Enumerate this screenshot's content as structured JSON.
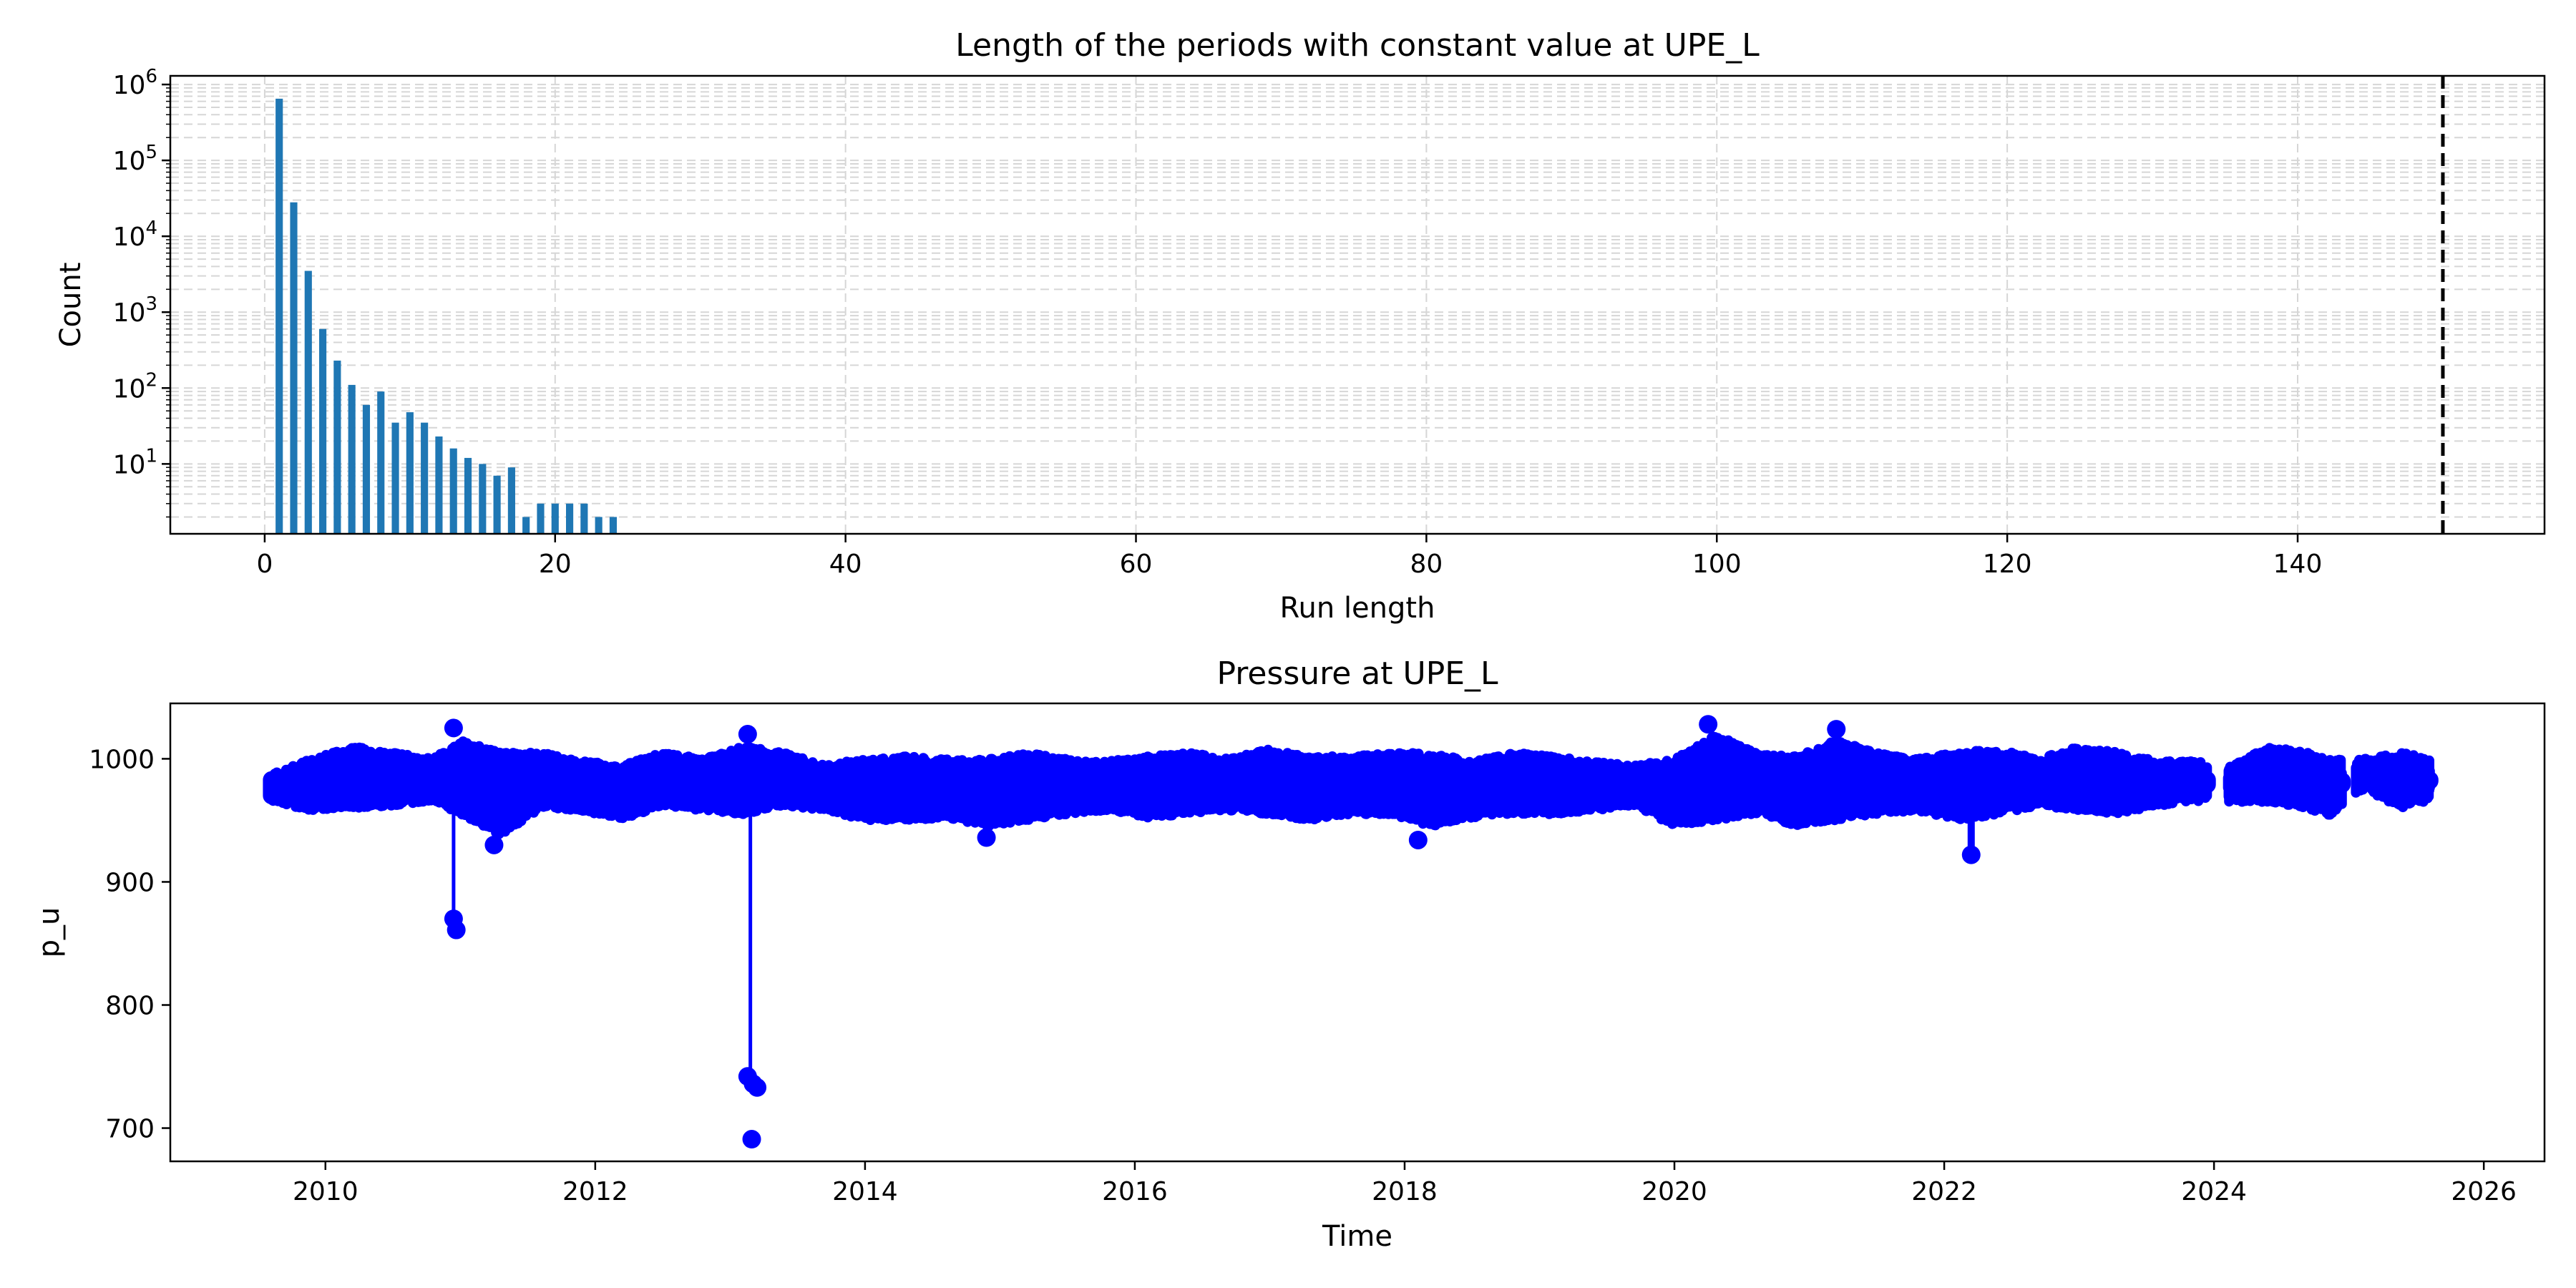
{
  "chart_data": [
    {
      "type": "bar",
      "title": "Length of the periods with constant value at UPE_L",
      "xlabel": "Run length",
      "ylabel": "Count",
      "yscale": "log",
      "xlim": [
        -6.5,
        157
      ],
      "ylim": [
        1.2,
        1300000
      ],
      "grid": "dashed, major and minor",
      "xticks": [
        "0",
        "20",
        "40",
        "60",
        "80",
        "100",
        "120",
        "140"
      ],
      "yticks": [
        {
          "base": "10",
          "exp": "1"
        },
        {
          "base": "10",
          "exp": "2"
        },
        {
          "base": "10",
          "exp": "3"
        },
        {
          "base": "10",
          "exp": "4"
        },
        {
          "base": "10",
          "exp": "5"
        },
        {
          "base": "10",
          "exp": "6"
        }
      ],
      "bar_color": "#1f77b4",
      "x": [
        1,
        2,
        3,
        4,
        5,
        6,
        7,
        8,
        9,
        10,
        11,
        12,
        13,
        14,
        15,
        16,
        17,
        18,
        19,
        20,
        21,
        22,
        23,
        24
      ],
      "values": [
        650000,
        28000,
        3500,
        600,
        230,
        110,
        60,
        90,
        35,
        48,
        35,
        23,
        16,
        12,
        10,
        7,
        9,
        2,
        3,
        3,
        3,
        3,
        2,
        2
      ],
      "threshold_line": {
        "x": 150,
        "style": "dashed",
        "color": "#000000"
      }
    },
    {
      "type": "line",
      "title": "Pressure at UPE_L",
      "xlabel": "Time",
      "ylabel": "p_u",
      "xlim": [
        2008.85,
        2026.45
      ],
      "ylim": [
        673,
        1045
      ],
      "xticks": [
        "2010",
        "2012",
        "2014",
        "2016",
        "2018",
        "2020",
        "2022",
        "2024",
        "2026"
      ],
      "yticks": [
        "700",
        "800",
        "900",
        "1000"
      ],
      "series_color": "#0000ff",
      "marker": "circle",
      "band": [
        [
          2009.6,
          965,
          988
        ],
        [
          2009.9,
          958,
          1000
        ],
        [
          2010.2,
          960,
          1010
        ],
        [
          2010.5,
          962,
          1005
        ],
        [
          2010.8,
          965,
          1000
        ],
        [
          2011.0,
          955,
          1015
        ],
        [
          2011.3,
          938,
          1005
        ],
        [
          2011.6,
          960,
          1005
        ],
        [
          2011.9,
          958,
          998
        ],
        [
          2012.2,
          950,
          995
        ],
        [
          2012.5,
          962,
          1005
        ],
        [
          2012.8,
          958,
          1000
        ],
        [
          2013.1,
          955,
          1010
        ],
        [
          2013.4,
          962,
          1005
        ],
        [
          2013.7,
          958,
          995
        ],
        [
          2014.0,
          950,
          1000
        ],
        [
          2014.3,
          950,
          1002
        ],
        [
          2014.6,
          952,
          1000
        ],
        [
          2014.9,
          945,
          1000
        ],
        [
          2015.2,
          950,
          1005
        ],
        [
          2015.5,
          955,
          1000
        ],
        [
          2015.8,
          958,
          998
        ],
        [
          2016.1,
          952,
          1002
        ],
        [
          2016.4,
          955,
          1005
        ],
        [
          2016.7,
          958,
          1000
        ],
        [
          2017.0,
          955,
          1008
        ],
        [
          2017.3,
          950,
          1002
        ],
        [
          2017.6,
          955,
          1002
        ],
        [
          2017.9,
          955,
          1005
        ],
        [
          2018.2,
          945,
          1005
        ],
        [
          2018.5,
          952,
          998
        ],
        [
          2018.8,
          955,
          1005
        ],
        [
          2019.1,
          955,
          1002
        ],
        [
          2019.4,
          958,
          998
        ],
        [
          2019.7,
          962,
          995
        ],
        [
          2020.0,
          945,
          1000
        ],
        [
          2020.3,
          950,
          1020
        ],
        [
          2020.6,
          955,
          1005
        ],
        [
          2020.9,
          945,
          1002
        ],
        [
          2021.2,
          950,
          1015
        ],
        [
          2021.5,
          955,
          1005
        ],
        [
          2021.8,
          958,
          1000
        ],
        [
          2022.1,
          950,
          1005
        ],
        [
          2022.4,
          955,
          1008
        ],
        [
          2022.7,
          962,
          1000
        ],
        [
          2023.0,
          958,
          1010
        ],
        [
          2023.3,
          955,
          1005
        ],
        [
          2023.6,
          962,
          998
        ],
        [
          2023.85,
          965,
          998
        ],
        [
          2024.15,
          965,
          995
        ],
        [
          2024.4,
          965,
          1010
        ],
        [
          2024.7,
          960,
          1005
        ],
        [
          2024.85,
          952,
          1000
        ],
        [
          2025.1,
          975,
          1000
        ],
        [
          2025.4,
          960,
          1005
        ],
        [
          2025.6,
          965,
          1000
        ]
      ],
      "gap": [
        2023.95,
        2024.1
      ],
      "gap2": [
        2024.95,
        2025.05
      ],
      "points": [
        {
          "x": 2010.95,
          "y": 1025
        },
        {
          "x": 2010.95,
          "y": 870
        },
        {
          "x": 2010.97,
          "y": 861
        },
        {
          "x": 2011.25,
          "y": 930
        },
        {
          "x": 2013.13,
          "y": 1020
        },
        {
          "x": 2013.13,
          "y": 742
        },
        {
          "x": 2013.17,
          "y": 736
        },
        {
          "x": 2013.2,
          "y": 733
        },
        {
          "x": 2013.16,
          "y": 691
        },
        {
          "x": 2022.2,
          "y": 922
        },
        {
          "x": 2020.25,
          "y": 1028
        },
        {
          "x": 2021.2,
          "y": 1024
        },
        {
          "x": 2014.9,
          "y": 936
        },
        {
          "x": 2018.1,
          "y": 934
        }
      ]
    }
  ]
}
